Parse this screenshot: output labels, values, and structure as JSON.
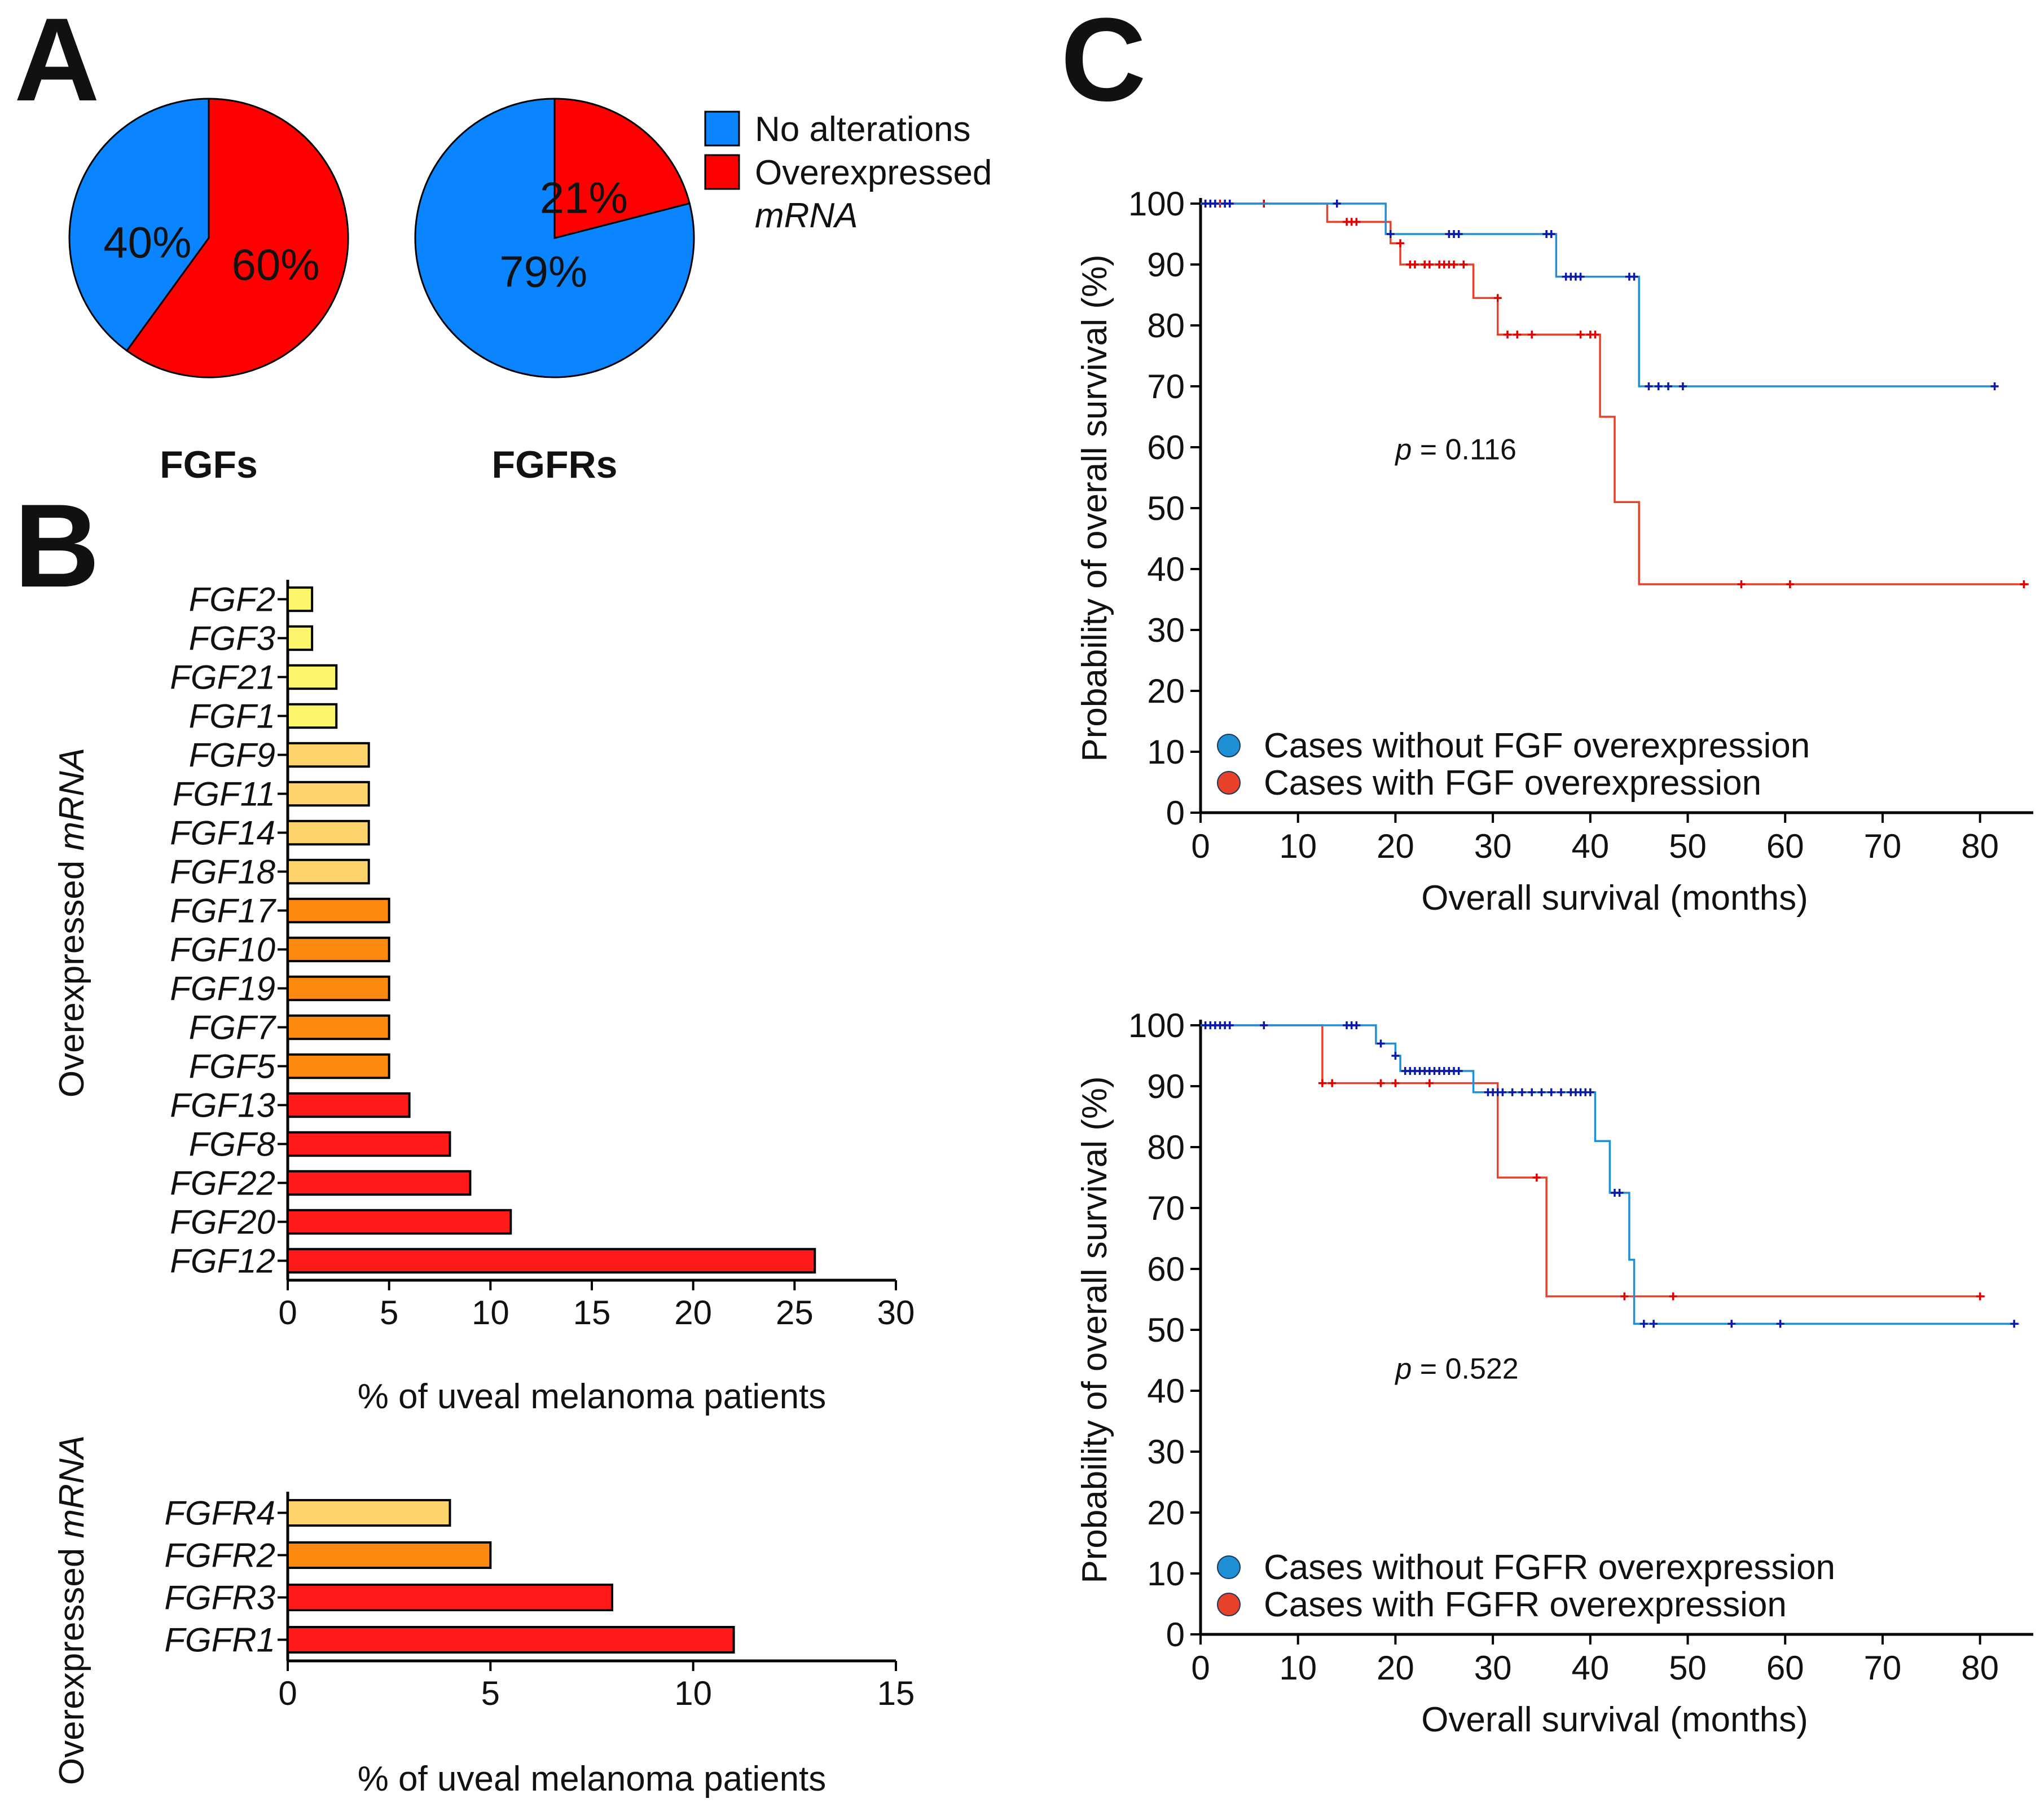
{
  "panels": {
    "a": "A",
    "b": "B",
    "c": "C"
  },
  "pie_legend": [
    {
      "label": "No alterations",
      "color": "#0a84ff"
    },
    {
      "label": "Overexpressed",
      "label2": "mRNA",
      "color": "#ff0000"
    }
  ],
  "colors": {
    "blue": "#0a84ff",
    "red": "#ff0000",
    "km_blue": "#1f8fd6",
    "km_blue_censor": "#0a1aa8",
    "km_red": "#e8412a",
    "km_red_censor": "#e00000",
    "bar_yellow": "#fbf56a",
    "bar_lightorange": "#fdd36b",
    "bar_orange": "#fd8a10",
    "bar_red": "#ff1a1a"
  },
  "chart_data": [
    {
      "id": "pie-fgfs",
      "type": "pie",
      "title": "FGFs",
      "slices": [
        {
          "label": "No alterations",
          "value": 40,
          "text": "40%",
          "color": "#0a84ff"
        },
        {
          "label": "Overexpressed mRNA",
          "value": 60,
          "text": "60%",
          "color": "#ff0000"
        }
      ]
    },
    {
      "id": "pie-fgfrs",
      "type": "pie",
      "title": "FGFRs",
      "slices": [
        {
          "label": "No alterations",
          "value": 79,
          "text": "79%",
          "color": "#0a84ff"
        },
        {
          "label": "Overexpressed mRNA",
          "value": 21,
          "text": "21%",
          "color": "#ff0000"
        }
      ]
    },
    {
      "id": "bar-fgf",
      "type": "bar",
      "orientation": "horizontal",
      "ylabel_pre": "Overexpressed ",
      "ylabel_ital": "mRNA",
      "xlabel": "% of uveal melanoma patients",
      "xlim": [
        0,
        30
      ],
      "xticks": [
        0,
        5,
        10,
        15,
        20,
        25,
        30
      ],
      "categories": [
        "FGF2",
        "FGF3",
        "FGF21",
        "FGF1",
        "FGF9",
        "FGF11",
        "FGF14",
        "FGF18",
        "FGF17",
        "FGF10",
        "FGF19",
        "FGF7",
        "FGF5",
        "FGF13",
        "FGF8",
        "FGF22",
        "FGF20",
        "FGF12"
      ],
      "values": [
        1.2,
        1.2,
        2.4,
        2.4,
        4,
        4,
        4,
        4,
        5,
        5,
        5,
        5,
        5,
        6,
        8,
        9,
        11,
        26
      ],
      "color_groups": [
        "bar_yellow",
        "bar_yellow",
        "bar_yellow",
        "bar_yellow",
        "bar_lightorange",
        "bar_lightorange",
        "bar_lightorange",
        "bar_lightorange",
        "bar_orange",
        "bar_orange",
        "bar_orange",
        "bar_orange",
        "bar_orange",
        "bar_red",
        "bar_red",
        "bar_red",
        "bar_red",
        "bar_red"
      ]
    },
    {
      "id": "bar-fgfr",
      "type": "bar",
      "orientation": "horizontal",
      "ylabel_pre": "Overexpressed ",
      "ylabel_ital": "mRNA",
      "xlabel": "% of uveal melanoma patients",
      "xlim": [
        0,
        15
      ],
      "xticks": [
        0,
        5,
        10,
        15
      ],
      "categories": [
        "FGFR4",
        "FGFR2",
        "FGFR3",
        "FGFR1"
      ],
      "values": [
        4,
        5,
        8,
        11
      ],
      "color_groups": [
        "bar_lightorange",
        "bar_orange",
        "bar_red",
        "bar_red"
      ]
    },
    {
      "id": "km-fgf",
      "type": "line",
      "subtype": "kaplan-meier",
      "xlabel": "Overall survival (months)",
      "ylabel": "Probability of overall survival (%)",
      "xlim": [
        0,
        85
      ],
      "ylim": [
        0,
        100
      ],
      "xticks": [
        0,
        10,
        20,
        30,
        40,
        50,
        60,
        70,
        80
      ],
      "yticks": [
        0,
        10,
        20,
        30,
        40,
        50,
        60,
        70,
        80,
        90,
        100
      ],
      "annotation_p": "p",
      "annotation_value": " = 0.116",
      "annotation_pos": [
        20,
        58
      ],
      "legend": [
        {
          "label": "Cases without FGF overexpression",
          "color": "#1f8fd6"
        },
        {
          "label": "Cases with FGF overexpression",
          "color": "#e8412a"
        }
      ],
      "series": [
        {
          "name": "Cases without FGF overexpression",
          "color": "#1f8fd6",
          "censor_color": "#0a1aa8",
          "steps": [
            [
              0,
              100
            ],
            [
              19,
              100
            ],
            [
              19,
              95
            ],
            [
              36.5,
              95
            ],
            [
              36.5,
              88
            ],
            [
              45,
              88
            ],
            [
              45,
              70
            ],
            [
              81.5,
              70
            ]
          ],
          "censors": [
            [
              0.5,
              100
            ],
            [
              1,
              100
            ],
            [
              1.5,
              100
            ],
            [
              2.5,
              100
            ],
            [
              3,
              100
            ],
            [
              14,
              100
            ],
            [
              19.5,
              95
            ],
            [
              25.5,
              95
            ],
            [
              26,
              95
            ],
            [
              26.5,
              95
            ],
            [
              35.5,
              95
            ],
            [
              36,
              95
            ],
            [
              37.5,
              88
            ],
            [
              38,
              88
            ],
            [
              38.5,
              88
            ],
            [
              39,
              88
            ],
            [
              44,
              88
            ],
            [
              44.5,
              88
            ],
            [
              46,
              70
            ],
            [
              47,
              70
            ],
            [
              48,
              70
            ],
            [
              49.5,
              70
            ],
            [
              81.5,
              70
            ]
          ]
        },
        {
          "name": "Cases with FGF overexpression",
          "color": "#e8412a",
          "censor_color": "#e00000",
          "steps": [
            [
              0,
              100
            ],
            [
              13,
              100
            ],
            [
              13,
              97
            ],
            [
              19.5,
              97
            ],
            [
              19.5,
              93.5
            ],
            [
              20.5,
              93.5
            ],
            [
              20.5,
              90
            ],
            [
              28,
              90
            ],
            [
              28,
              84.5
            ],
            [
              30.5,
              84.5
            ],
            [
              30.5,
              78.5
            ],
            [
              41,
              78.5
            ],
            [
              41,
              65
            ],
            [
              42.5,
              65
            ],
            [
              42.5,
              51
            ],
            [
              45,
              51
            ],
            [
              45,
              37.5
            ],
            [
              85,
              37.5
            ]
          ],
          "censors": [
            [
              0.5,
              100
            ],
            [
              1,
              100
            ],
            [
              2,
              100
            ],
            [
              3,
              100
            ],
            [
              6.5,
              100
            ],
            [
              15,
              97
            ],
            [
              15.5,
              97
            ],
            [
              16,
              97
            ],
            [
              20.5,
              93.5
            ],
            [
              21.5,
              90
            ],
            [
              22,
              90
            ],
            [
              23,
              90
            ],
            [
              23.5,
              90
            ],
            [
              24.5,
              90
            ],
            [
              25,
              90
            ],
            [
              25.5,
              90
            ],
            [
              26,
              90
            ],
            [
              27,
              90
            ],
            [
              30.5,
              84.5
            ],
            [
              31.5,
              78.5
            ],
            [
              32.5,
              78.5
            ],
            [
              34,
              78.5
            ],
            [
              39,
              78.5
            ],
            [
              40,
              78.5
            ],
            [
              40.5,
              78.5
            ],
            [
              55.5,
              37.5
            ],
            [
              60.5,
              37.5
            ],
            [
              84.5,
              37.5
            ]
          ]
        }
      ]
    },
    {
      "id": "km-fgfr",
      "type": "line",
      "subtype": "kaplan-meier",
      "xlabel": "Overall survival (months)",
      "ylabel": "Probability of overall survival (%)",
      "xlim": [
        0,
        85
      ],
      "ylim": [
        0,
        100
      ],
      "xticks": [
        0,
        10,
        20,
        30,
        40,
        50,
        60,
        70,
        80
      ],
      "yticks": [
        0,
        10,
        20,
        30,
        40,
        50,
        60,
        70,
        80,
        90,
        100
      ],
      "annotation_p": "p",
      "annotation_value": " = 0.522",
      "annotation_pos": [
        20,
        42
      ],
      "legend": [
        {
          "label": "Cases without FGFR overexpression",
          "color": "#1f8fd6"
        },
        {
          "label": "Cases with FGFR overexpression",
          "color": "#e8412a"
        }
      ],
      "series": [
        {
          "name": "Cases without FGFR overexpression",
          "color": "#1f8fd6",
          "censor_color": "#0a1aa8",
          "steps": [
            [
              0,
              100
            ],
            [
              18,
              100
            ],
            [
              18,
              97
            ],
            [
              20,
              97
            ],
            [
              20,
              95
            ],
            [
              20.5,
              95
            ],
            [
              20.5,
              92.5
            ],
            [
              28,
              92.5
            ],
            [
              28,
              89
            ],
            [
              40.5,
              89
            ],
            [
              40.5,
              81
            ],
            [
              42,
              81
            ],
            [
              42,
              72.5
            ],
            [
              44,
              72.5
            ],
            [
              44,
              61.5
            ],
            [
              44.5,
              61.5
            ],
            [
              44.5,
              51
            ],
            [
              84,
              51
            ]
          ],
          "censors": [
            [
              0.5,
              100
            ],
            [
              1,
              100
            ],
            [
              1.5,
              100
            ],
            [
              2,
              100
            ],
            [
              2.5,
              100
            ],
            [
              3,
              100
            ],
            [
              6.5,
              100
            ],
            [
              15,
              100
            ],
            [
              15.5,
              100
            ],
            [
              16,
              100
            ],
            [
              18.5,
              97
            ],
            [
              20,
              95
            ],
            [
              21,
              92.5
            ],
            [
              21.5,
              92.5
            ],
            [
              22,
              92.5
            ],
            [
              22.5,
              92.5
            ],
            [
              23,
              92.5
            ],
            [
              23.5,
              92.5
            ],
            [
              24,
              92.5
            ],
            [
              24.5,
              92.5
            ],
            [
              25,
              92.5
            ],
            [
              25.5,
              92.5
            ],
            [
              26,
              92.5
            ],
            [
              26.5,
              92.5
            ],
            [
              29.5,
              89
            ],
            [
              30,
              89
            ],
            [
              30.5,
              89
            ],
            [
              31,
              89
            ],
            [
              32,
              89
            ],
            [
              33,
              89
            ],
            [
              34,
              89
            ],
            [
              35,
              89
            ],
            [
              36,
              89
            ],
            [
              37,
              89
            ],
            [
              38,
              89
            ],
            [
              38.5,
              89
            ],
            [
              39,
              89
            ],
            [
              39.5,
              89
            ],
            [
              40,
              89
            ],
            [
              42.5,
              72.5
            ],
            [
              43,
              72.5
            ],
            [
              45.5,
              51
            ],
            [
              46.5,
              51
            ],
            [
              54.5,
              51
            ],
            [
              59.5,
              51
            ],
            [
              83.5,
              51
            ]
          ]
        },
        {
          "name": "Cases with FGFR overexpression",
          "color": "#e8412a",
          "censor_color": "#e00000",
          "steps": [
            [
              0,
              100
            ],
            [
              12.5,
              100
            ],
            [
              12.5,
              90.5
            ],
            [
              30.5,
              90.5
            ],
            [
              30.5,
              75
            ],
            [
              35.5,
              75
            ],
            [
              35.5,
              55.5
            ],
            [
              80.5,
              55.5
            ]
          ],
          "censors": [
            [
              12.5,
              90.5
            ],
            [
              13.5,
              90.5
            ],
            [
              18.5,
              90.5
            ],
            [
              20,
              90.5
            ],
            [
              23.5,
              90.5
            ],
            [
              34.5,
              75
            ],
            [
              43.5,
              55.5
            ],
            [
              48.5,
              55.5
            ],
            [
              80,
              55.5
            ]
          ]
        }
      ]
    }
  ]
}
